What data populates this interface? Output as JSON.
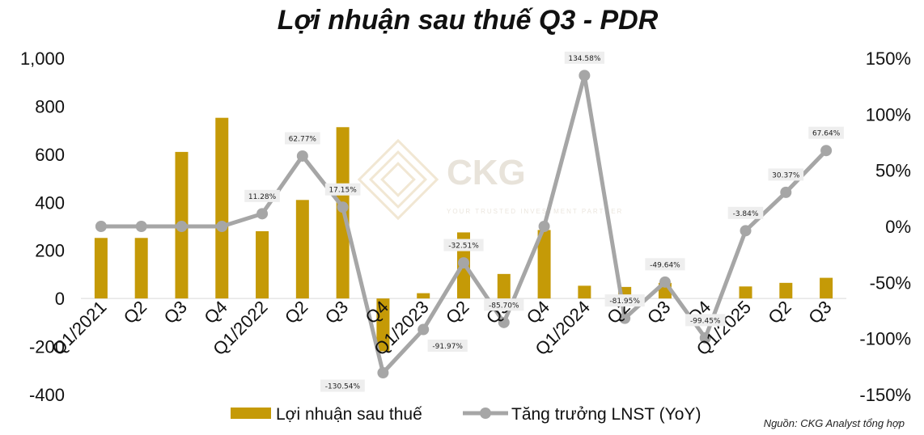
{
  "watermark": {
    "brand": "CKG",
    "tagline": "YOUR TRUSTED INVESTMENT PARTNER"
  },
  "source_note": "Nguồn: CKG Analyst tổng hợp",
  "chart_data": {
    "type": "bar",
    "title": "Lợi nhuận sau thuế Q3 - PDR",
    "categories": [
      "Q1/2021",
      "Q2",
      "Q3",
      "Q4",
      "Q1/2022",
      "Q2",
      "Q3",
      "Q4",
      "Q1/2023",
      "Q2",
      "Q3",
      "Q4",
      "Q1/2024",
      "Q2",
      "Q3",
      "Q4",
      "Q1/2025",
      "Q2",
      "Q3"
    ],
    "series": [
      {
        "name": "Lợi nhuận sau thuế",
        "type": "bar",
        "axis": "left",
        "color": "#C59A07",
        "values": [
          252,
          252,
          610,
          752,
          280,
          410,
          713,
          -220,
          22,
          275,
          102,
          285,
          53,
          48,
          65,
          0,
          50,
          65,
          86
        ]
      },
      {
        "name": "Tăng trưởng LNST (YoY)",
        "type": "line",
        "axis": "right",
        "color": "#A6A6A6",
        "values": [
          0,
          0,
          0,
          0,
          11.28,
          62.77,
          17.15,
          -130.54,
          -91.97,
          -32.51,
          -85.7,
          0,
          134.58,
          -81.95,
          -49.64,
          -99.45,
          -3.84,
          30.37,
          67.64
        ],
        "labels": [
          null,
          null,
          null,
          null,
          "11.28%",
          "62.77%",
          "17.15%",
          "-130.54%",
          "-91.97%",
          "-32.51%",
          "-85.70%",
          null,
          "134.58%",
          "-81.95%",
          "-49.64%",
          "-99.45%",
          "-3.84%",
          "30.37%",
          "67.64%"
        ]
      }
    ],
    "y_left": {
      "min": -400,
      "max": 1000,
      "ticks": [
        -400,
        -200,
        0,
        200,
        400,
        600,
        800,
        1000
      ],
      "tick_labels": [
        "-400",
        "-200",
        "0",
        "200",
        "400",
        "600",
        "800",
        "1,000"
      ]
    },
    "y_right": {
      "min": -150,
      "max": 150,
      "ticks": [
        -150,
        -100,
        -50,
        0,
        50,
        100,
        150
      ],
      "tick_labels": [
        "-150%",
        "-100%",
        "-50%",
        "0%",
        "50%",
        "100%",
        "150%"
      ]
    },
    "grid": false,
    "legend_position": "bottom"
  }
}
